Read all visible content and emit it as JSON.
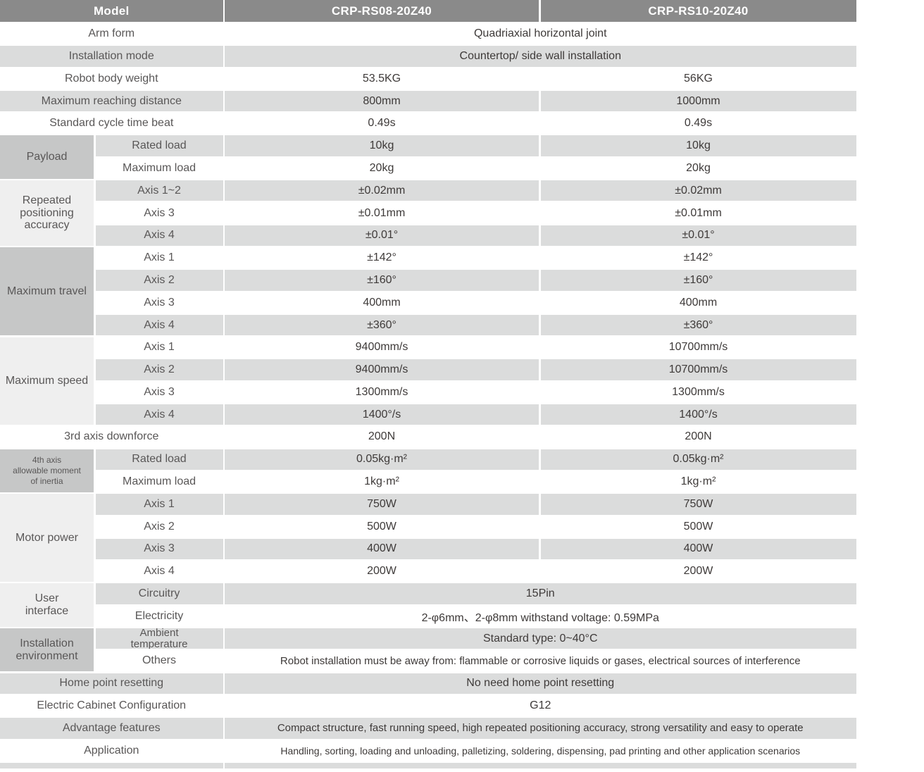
{
  "palette": {
    "header_bg": "#8a8a8a",
    "header_text": "#ffffff",
    "stripe_bg": "#dbdcdc",
    "group_dark_bg": "#c6c7c7",
    "group_light_bg": "#efefef",
    "label_text": "#595757",
    "value_text": "#3e3a39"
  },
  "header": {
    "model": "Model",
    "model_a": "CRP-RS08-20Z40",
    "model_b": "CRP-RS10-20Z40"
  },
  "rows": {
    "arm_form": {
      "label": "Arm form",
      "value": "Quadriaxial horizontal joint"
    },
    "installation_mode": {
      "label": "Installation mode",
      "value": "Countertop/ side wall installation"
    },
    "body_weight": {
      "label": "Robot body weight",
      "v1": "53.5KG",
      "v2": "56KG"
    },
    "reach": {
      "label": "Maximum reaching distance",
      "v1": "800mm",
      "v2": "1000mm"
    },
    "cycle": {
      "label": "Standard cycle time beat",
      "v1": "0.49s",
      "v2": "0.49s"
    },
    "downforce": {
      "label": "3rd axis downforce",
      "v1": "200N",
      "v2": "200N"
    },
    "home": {
      "label": "Home point resetting",
      "value": "No need home point resetting"
    },
    "cabinet": {
      "label": "Electric Cabinet Configuration",
      "value": "G12"
    },
    "advantage": {
      "label": "Advantage features",
      "value": "Compact structure, fast running speed, high repeated positioning accuracy, strong versatility and easy to operate"
    },
    "application": {
      "label": "Application",
      "value": "Handling, sorting, loading and unloading, palletizing, soldering, dispensing, pad printing and other application scenarios"
    }
  },
  "groups": {
    "payload": {
      "label": "Payload",
      "items": [
        {
          "label": "Rated load",
          "v1": "10kg",
          "v2": "10kg"
        },
        {
          "label": "Maximum load",
          "v1": "20kg",
          "v2": "20kg"
        }
      ]
    },
    "accuracy": {
      "label": "Repeated\npositioning\naccuracy",
      "items": [
        {
          "label": "Axis 1~2",
          "v1": "±0.02mm",
          "v2": "±0.02mm"
        },
        {
          "label": "Axis 3",
          "v1": "±0.01mm",
          "v2": "±0.01mm"
        },
        {
          "label": "Axis 4",
          "v1": "±0.01°",
          "v2": "±0.01°"
        }
      ]
    },
    "travel": {
      "label": "Maximum travel",
      "items": [
        {
          "label": "Axis 1",
          "v1": "±142°",
          "v2": "±142°"
        },
        {
          "label": "Axis 2",
          "v1": "±160°",
          "v2": "±160°"
        },
        {
          "label": "Axis 3",
          "v1": "400mm",
          "v2": "400mm"
        },
        {
          "label": "Axis 4",
          "v1": "±360°",
          "v2": "±360°"
        }
      ]
    },
    "speed": {
      "label": "Maximum speed",
      "items": [
        {
          "label": "Axis 1",
          "v1": "9400mm/s",
          "v2": "10700mm/s"
        },
        {
          "label": "Axis 2",
          "v1": "9400mm/s",
          "v2": "10700mm/s"
        },
        {
          "label": "Axis 3",
          "v1": "1300mm/s",
          "v2": "1300mm/s"
        },
        {
          "label": "Axis 4",
          "v1": "1400°/s",
          "v2": "1400°/s"
        }
      ]
    },
    "inertia": {
      "label": "4th axis\nallowable moment\nof inertia",
      "items": [
        {
          "label": "Rated load",
          "v1": "0.05kg·m²",
          "v2": "0.05kg·m²"
        },
        {
          "label": "Maximum load",
          "v1": "1kg·m²",
          "v2": "1kg·m²"
        }
      ]
    },
    "motor": {
      "label": "Motor power",
      "items": [
        {
          "label": "Axis 1",
          "v1": "750W",
          "v2": "750W"
        },
        {
          "label": "Axis 2",
          "v1": "500W",
          "v2": "500W"
        },
        {
          "label": "Axis 3",
          "v1": "400W",
          "v2": "400W"
        },
        {
          "label": "Axis 4",
          "v1": "200W",
          "v2": "200W"
        }
      ]
    },
    "ui": {
      "label": "User\ninterface",
      "items": [
        {
          "label": "Circuitry",
          "value": "15Pin"
        },
        {
          "label": "Electricity",
          "value": "2-φ6mm、2-φ8mm withstand voltage: 0.59MPa"
        }
      ]
    },
    "env": {
      "label": "Installation\nenvironment",
      "items": [
        {
          "label": "Ambient\ntemperature",
          "value": "Standard type:  0~40°C"
        },
        {
          "label": "Others",
          "value": "Robot installation must be away from: flammable or corrosive liquids or gases, electrical sources of interference"
        }
      ]
    }
  }
}
